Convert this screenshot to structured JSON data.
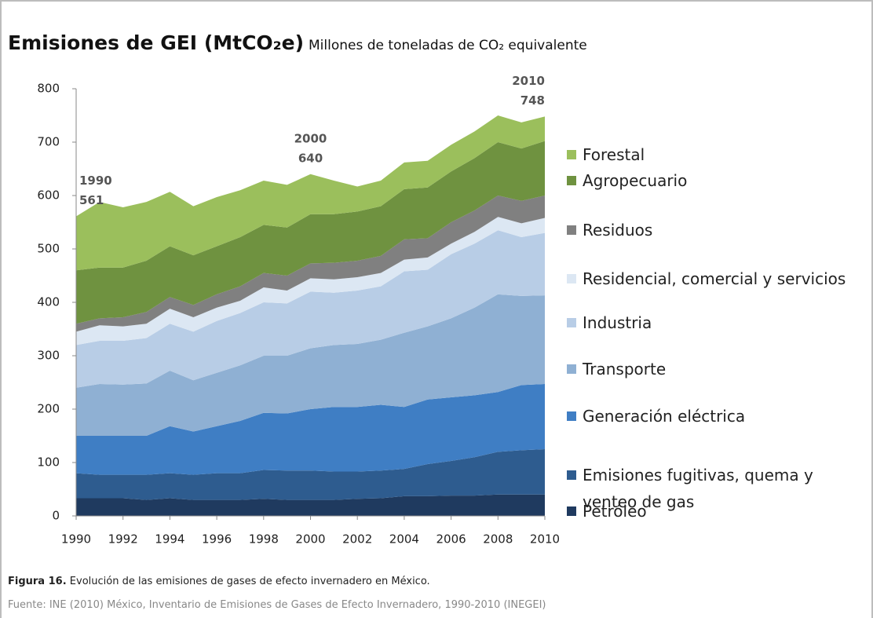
{
  "chart_data": {
    "type": "stacked_area",
    "title": "Emisiones de GEI (MtCO₂e)",
    "subtitle": "Millones de toneladas de CO₂ equivalente",
    "x": [
      1990,
      1991,
      1992,
      1993,
      1994,
      1995,
      1996,
      1997,
      1998,
      1999,
      2000,
      2001,
      2002,
      2003,
      2004,
      2005,
      2006,
      2007,
      2008,
      2009,
      2010
    ],
    "xlim": [
      1990,
      2010
    ],
    "xticks": [
      1990,
      1992,
      1994,
      1996,
      1998,
      2000,
      2002,
      2004,
      2006,
      2008,
      2010
    ],
    "ylim": [
      0,
      800
    ],
    "yticks": [
      0,
      100,
      200,
      300,
      400,
      500,
      600,
      700,
      800
    ],
    "series": [
      {
        "name": "Petróleo",
        "color": "#1f3a5f",
        "values": [
          33,
          33,
          33,
          30,
          33,
          30,
          30,
          30,
          32,
          30,
          30,
          30,
          32,
          33,
          37,
          37,
          38,
          38,
          40,
          40,
          40
        ]
      },
      {
        "name": "Emisiones fugitivas, quema y venteo de gas",
        "color": "#2e5c8f",
        "values": [
          47,
          44,
          44,
          47,
          47,
          47,
          50,
          50,
          54,
          55,
          55,
          53,
          51,
          52,
          51,
          60,
          65,
          72,
          80,
          83,
          85
        ]
      },
      {
        "name": "Generación eléctrica",
        "color": "#3f7ec4",
        "values": [
          70,
          73,
          73,
          73,
          88,
          81,
          88,
          98,
          107,
          107,
          115,
          121,
          121,
          123,
          116,
          121,
          119,
          116,
          112,
          122,
          122
        ]
      },
      {
        "name": "Transporte",
        "color": "#8fb0d3",
        "values": [
          90,
          97,
          96,
          98,
          104,
          96,
          100,
          104,
          107,
          108,
          114,
          116,
          118,
          122,
          139,
          137,
          148,
          164,
          183,
          167,
          166
        ]
      },
      {
        "name": "Industria",
        "color": "#b8cde6",
        "values": [
          80,
          81,
          82,
          85,
          88,
          91,
          97,
          98,
          100,
          98,
          106,
          98,
          100,
          100,
          115,
          106,
          120,
          120,
          120,
          110,
          117
        ]
      },
      {
        "name": "Residencial, comercial y servicios",
        "color": "#dce7f3",
        "values": [
          25,
          29,
          27,
          27,
          28,
          27,
          25,
          23,
          28,
          24,
          25,
          25,
          25,
          25,
          22,
          23,
          20,
          22,
          25,
          26,
          28
        ]
      },
      {
        "name": "Residuos",
        "color": "#808080",
        "values": [
          15,
          13,
          17,
          22,
          22,
          23,
          25,
          27,
          27,
          28,
          28,
          31,
          31,
          32,
          38,
          36,
          40,
          40,
          40,
          42,
          42
        ]
      },
      {
        "name": "Agropecuario",
        "color": "#6f9240",
        "values": [
          100,
          95,
          93,
          96,
          95,
          93,
          90,
          92,
          90,
          90,
          92,
          91,
          92,
          93,
          94,
          95,
          95,
          98,
          100,
          98,
          102
        ]
      },
      {
        "name": "Forestal",
        "color": "#9bbf5c",
        "values": [
          101,
          123,
          113,
          110,
          102,
          92,
          92,
          88,
          83,
          80,
          75,
          63,
          47,
          48,
          50,
          50,
          50,
          50,
          50,
          49,
          46
        ]
      }
    ],
    "annotations": [
      {
        "x": 1990,
        "y": 561
      },
      {
        "x": 2000,
        "y": 640
      },
      {
        "x": 2010,
        "y": 748
      }
    ],
    "caption": {
      "label": "Figura 16.",
      "text": "Evolución de las emisiones de gases de efecto invernadero en México."
    },
    "source": "Fuente: INE (2010) México, Inventario de Emisiones de Gases de Efecto Invernadero, 1990-2010 (INEGEI)"
  }
}
